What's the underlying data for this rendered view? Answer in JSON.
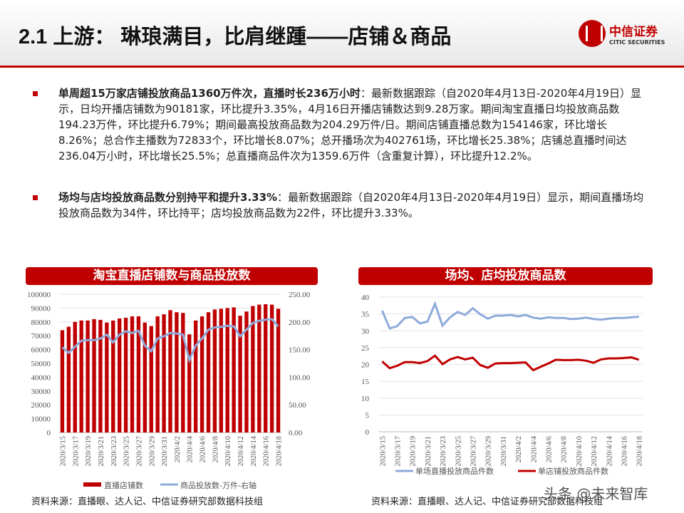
{
  "header": {
    "title": "2.1 上游： 琳琅满目，比肩继踵——店铺＆商品",
    "logo_cn": "中信证券",
    "logo_en": "CITIC SECURITIES"
  },
  "bullets": [
    {
      "bold": "单周超15万家店铺投放商品1360万件次，直播时长236万小时",
      "text": "：最新数据跟踪（自2020年4月13日-2020年4月19日）显示，日均开播店铺数为90181家，环比提升3.35%，4月16日开播店铺数达到9.28万家。期间淘宝直播日均投放商品数194.23万件，环比提升6.79%；期间最高投放商品数为204.29万件/日。期间店铺直播总数为154146家，环比增长8.26%；总合作主播数为72833个，环比增长8.07%；总开播场次为402761场，环比增长25.38%；店铺总直播时间达236.04万小时，环比增长25.5%；总直播商品件次为1359.6万件（含重复计算），环比提升12.2%。"
    },
    {
      "bold": "场均与店均投放商品数分别持平和提升3.33%",
      "text": "：最新数据跟踪（自2020年4月13日-2020年4月19日）显示，期间直播场均投放商品数为34件，环比持平；店均投放商品数为22件，环比提升3.33%。"
    }
  ],
  "watermark": "头条 @未来智库",
  "chart_data": [
    {
      "type": "bar",
      "title": "淘宝直播店铺数与商品投放数",
      "categories": [
        "2020/3/15",
        "2020/3/16",
        "2020/3/17",
        "2020/3/18",
        "2020/3/19",
        "2020/3/20",
        "2020/3/21",
        "2020/3/22",
        "2020/3/23",
        "2020/3/24",
        "2020/3/25",
        "2020/3/26",
        "2020/3/27",
        "2020/3/28",
        "2020/3/29",
        "2020/3/30",
        "2020/3/31",
        "2020/4/1",
        "2020/4/2",
        "2020/4/3",
        "2020/4/4",
        "2020/4/5",
        "2020/4/6",
        "2020/4/7",
        "2020/4/8",
        "2020/4/9",
        "2020/4/10",
        "2020/4/11",
        "2020/4/12",
        "2020/4/13",
        "2020/4/14",
        "2020/4/15",
        "2020/4/16",
        "2020/4/17",
        "2020/4/18"
      ],
      "xtick_labels": [
        "2020/3/15",
        "2020/3/17",
        "2020/3/19",
        "2020/3/21",
        "2020/3/23",
        "2020/3/25",
        "2020/3/27",
        "2020/3/29",
        "2020/3/31",
        "2020/4/2",
        "2020/4/4",
        "2020/4/6",
        "2020/4/8",
        "2020/4/10",
        "2020/4/12",
        "2020/4/14",
        "2020/4/16",
        "2020/4/18"
      ],
      "series": [
        {
          "name": "直播店铺数",
          "kind": "bar",
          "axis": "left",
          "color": "#c00000",
          "values": [
            74000,
            76500,
            80000,
            81000,
            81000,
            82000,
            81500,
            79500,
            81000,
            82500,
            83000,
            84000,
            84000,
            79500,
            77000,
            84000,
            85500,
            88500,
            87000,
            86500,
            71000,
            81000,
            84000,
            87000,
            89000,
            89500,
            90000,
            90500,
            84500,
            87500,
            91500,
            92500,
            92800,
            92500,
            89500
          ]
        },
        {
          "name": "商品投放数-万件-右轴",
          "kind": "line",
          "axis": "right",
          "color": "#8eaadb",
          "values": [
            154,
            144,
            155,
            166,
            167,
            167,
            170,
            177,
            163,
            177,
            183,
            180,
            184,
            157,
            147,
            170,
            174,
            180,
            179,
            177,
            131,
            157,
            170,
            186,
            190,
            191,
            193,
            192,
            174,
            186,
            198,
            202,
            204,
            205,
            192
          ]
        }
      ],
      "yticks_left": [
        "100000",
        "90000",
        "80000",
        "70000",
        "60000",
        "50000",
        "40000",
        "30000",
        "20000",
        "10000",
        "0"
      ],
      "yticks_right": [
        "250.00",
        "200.00",
        "150.00",
        "100.00",
        "50.00",
        "0.00"
      ],
      "ylim_left": [
        0,
        100000
      ],
      "ylim_right": [
        0,
        250
      ],
      "grid": true,
      "legend": "bottom",
      "source": "资料来源：直播眼、达人记、中信证券研究部数据科技组"
    },
    {
      "type": "line",
      "title": "场均、店均投放商品数",
      "categories_ref": "same as first chart",
      "xtick_labels": [
        "2020/3/15",
        "2020/3/17",
        "2020/3/19",
        "2020/3/21",
        "2020/3/23",
        "2020/3/25",
        "2020/3/27",
        "2020/3/29",
        "2020/3/31",
        "2020/4/2",
        "2020/4/4",
        "2020/4/6",
        "2020/4/8",
        "2020/4/10",
        "2020/4/12",
        "2020/4/14",
        "2020/4/16",
        "2020/4/18"
      ],
      "series": [
        {
          "name": "单场直播投放商品件数",
          "color": "#8eaadb",
          "values": [
            36,
            30.7,
            31.4,
            33.8,
            34.1,
            32.2,
            32.7,
            38,
            31.5,
            34,
            35.6,
            34.7,
            36.7,
            34.9,
            33.6,
            34.5,
            34.5,
            34.7,
            34.3,
            34.7,
            33.9,
            33.6,
            34,
            33.8,
            33.8,
            33.5,
            33.6,
            33.9,
            33.5,
            33.3,
            33.6,
            33.8,
            33.8,
            34,
            34.2
          ]
        },
        {
          "name": "单店铺投放商品件数",
          "color": "#c00000",
          "values": [
            20.9,
            18.9,
            19.6,
            20.7,
            20.7,
            20.4,
            21,
            22.6,
            20.1,
            21.5,
            22.2,
            21.5,
            22,
            19.8,
            19,
            20.3,
            20.4,
            20.4,
            20.5,
            20.6,
            18.3,
            19.3,
            20.3,
            21.4,
            21.3,
            21.3,
            21.4,
            21.1,
            20.5,
            21.5,
            21.8,
            21.8,
            21.9,
            22.1,
            21.4
          ]
        }
      ],
      "yticks": [
        "40",
        "35",
        "30",
        "25",
        "20",
        "15",
        "10",
        "5",
        "0"
      ],
      "ylim": [
        0,
        40
      ],
      "grid": true,
      "legend": "bottom",
      "source": "资料来源：直播眼、达人记、中信证券研究部数据科技组"
    }
  ]
}
